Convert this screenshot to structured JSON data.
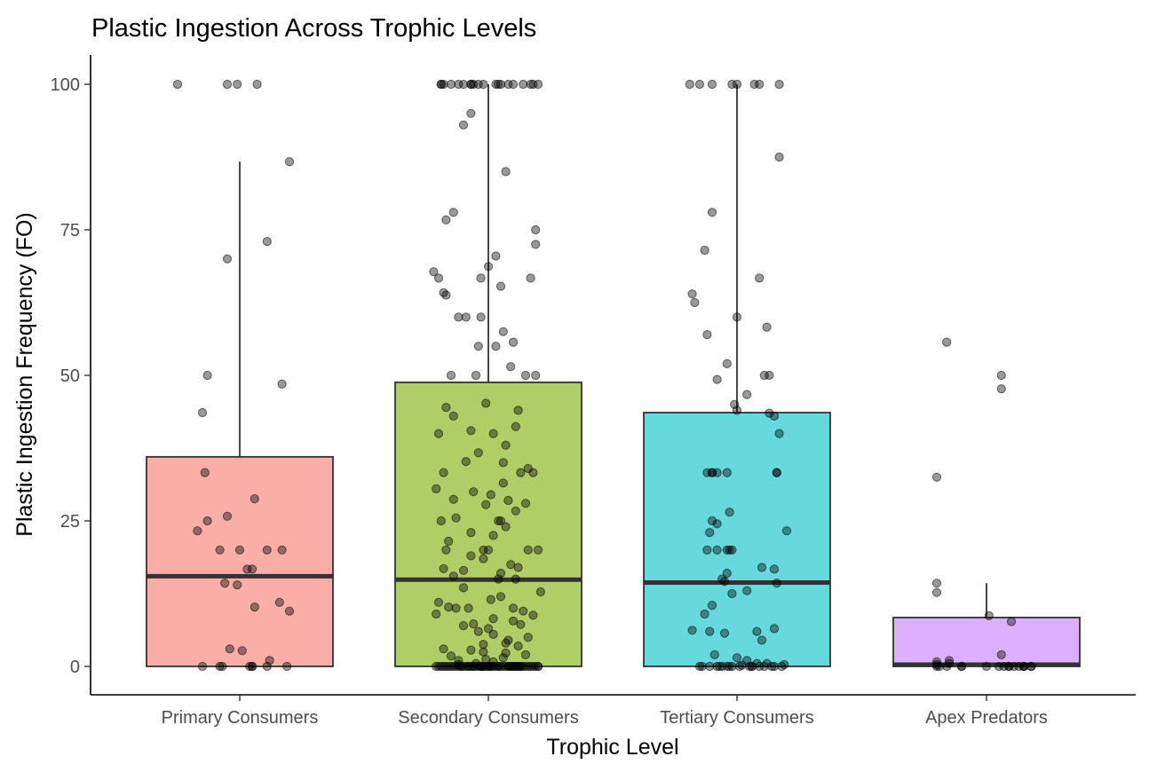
{
  "chart_data": {
    "type": "box",
    "title": "Plastic Ingestion Across Trophic Levels",
    "xlabel": "Trophic Level",
    "ylabel": "Plastic Ingestion Frequency (FO)",
    "ylim": [
      -4.5,
      105
    ],
    "yticks": [
      0,
      25,
      50,
      75,
      100
    ],
    "categories": [
      "Primary Consumers",
      "Secondary Consumers",
      "Tertiary Consumers",
      "Apex Predators"
    ],
    "colors": [
      "#F8766D",
      "#7CAE00",
      "#00BFC4",
      "#C77CFF"
    ],
    "fill_opacity": 0.6,
    "legend": "none",
    "grid": false,
    "boxes": [
      {
        "category": "Primary Consumers",
        "min": 0,
        "q1": 0,
        "median": 15.5,
        "q3": 36,
        "max": 86.7
      },
      {
        "category": "Secondary Consumers",
        "min": 0,
        "q1": 0,
        "median": 14.9,
        "q3": 48.8,
        "max": 100
      },
      {
        "category": "Tertiary Consumers",
        "min": 0,
        "q1": 0,
        "median": 14.4,
        "q3": 43.6,
        "max": 100
      },
      {
        "category": "Apex Predators",
        "min": 0,
        "q1": 0,
        "median": 0.3,
        "q3": 8.4,
        "max": 14.3
      }
    ],
    "points": [
      {
        "category": "Primary Consumers",
        "jitter": [
          -0.05,
          -0.01,
          0.07,
          0.2,
          -0.25,
          -0.05,
          -0.13,
          0.17,
          0.11,
          -0.15,
          -0.14,
          -0.13,
          -0.05,
          0.06,
          -0.17,
          0.11,
          -0.08,
          0.17,
          0.0,
          0.05,
          0.03,
          -0.01,
          -0.06,
          0.16,
          0.2,
          0.06,
          -0.04,
          0.01,
          0.12,
          -0.15,
          0.05,
          -0.07,
          0.19,
          0.11,
          0.04,
          -0.08,
          0.05
        ],
        "values": [
          100,
          100,
          100,
          86.7,
          100,
          70,
          50,
          48.5,
          73,
          43.6,
          33.3,
          25,
          25.8,
          28.8,
          23.3,
          20,
          20,
          20,
          20,
          16.7,
          16.7,
          14,
          14.3,
          11,
          9.5,
          10.2,
          3,
          2.7,
          1,
          0,
          0,
          0,
          0,
          0,
          0,
          0,
          0
        ]
      },
      {
        "category": "Secondary Consumers",
        "jitter": [
          -0.1,
          -0.07,
          -0.02,
          0.05,
          0.1,
          0.17,
          -0.19,
          0.14,
          -0.19,
          0.04,
          0.08,
          0.18,
          -0.15,
          0.2,
          -0.07,
          -0.06,
          -0.18,
          -0.12,
          -0.04,
          0.03,
          -0.07,
          -0.1,
          0.07,
          -0.14,
          -0.17,
          0.19,
          0.19,
          0.03,
          0.0,
          -0.22,
          -0.2,
          0.17,
          -0.03,
          0.05,
          -0.18,
          -0.17,
          -0.09,
          -0.12,
          -0.03,
          0.06,
          0.1,
          0.03,
          -0.04,
          0.09,
          -0.15,
          0.19,
          -0.05,
          0.15,
          -0.01,
          -0.17,
          0.12,
          -0.14,
          0.11,
          -0.07,
          -0.2,
          0.02,
          0.07,
          -0.04,
          -0.09,
          0.06,
          0.16,
          0.13,
          0.18,
          -0.18,
          0.06,
          -0.21,
          -0.06,
          0.01,
          -0.14,
          0.08,
          0.15,
          -0.01,
          0.11,
          -0.13,
          0.05,
          -0.19,
          0.04,
          0.07,
          -0.07,
          0.02,
          -0.16,
          0.16,
          -0.17,
          0.0,
          0.2,
          -0.02,
          -0.07,
          -0.02,
          0.09,
          0.12,
          -0.18,
          -0.1,
          0.05,
          -0.14,
          0.04,
          0.11,
          -0.1,
          0.21,
          0.05,
          0.01,
          -0.2,
          -0.16,
          -0.13,
          -0.08,
          0.1,
          0.14,
          -0.21,
          0.18,
          0.02,
          0.1,
          -0.06,
          0.13,
          -0.1,
          0.0,
          -0.04,
          0.02,
          0.16,
          0.08,
          0.07,
          -0.02,
          0.12,
          -0.18,
          -0.07,
          -0.02,
          0.07,
          0.15,
          -0.15,
          0.06,
          -0.01,
          -0.12,
          0.02,
          -0.05,
          -0.12,
          0.11,
          -0.03,
          0.09,
          -0.01,
          0.02,
          0.05,
          0.08,
          0.12,
          -0.2,
          -0.17,
          -0.14,
          -0.11,
          -0.08,
          -0.05,
          -0.02,
          0.01,
          0.04,
          0.07,
          0.1,
          0.13,
          0.16,
          0.19,
          0.2,
          -0.21,
          -0.19,
          -0.15,
          -0.13,
          -0.09,
          -0.06,
          -0.03,
          0.0,
          0.03,
          0.06,
          0.09,
          0.11,
          0.14,
          0.17,
          0.2,
          -0.16,
          -0.12,
          -0.08,
          -0.04,
          0.0,
          0.04,
          0.08,
          0.12,
          0.15,
          0.18,
          -0.11,
          -0.18,
          0.13,
          -0.03,
          0.1,
          -0.06,
          0.01
        ],
        "values": [
          100,
          100,
          100,
          100,
          100,
          100,
          100,
          100,
          100,
          100,
          100,
          100,
          100,
          100,
          100,
          100,
          100,
          100,
          100,
          100,
          95,
          93,
          85,
          78,
          76.7,
          75,
          72.5,
          70.5,
          68.7,
          67.8,
          66.7,
          66.7,
          66.7,
          65.3,
          64.2,
          63.8,
          60,
          60,
          60,
          57.5,
          55.7,
          55,
          55,
          51.5,
          50,
          50,
          50,
          50,
          45.2,
          44.5,
          44,
          43,
          41.2,
          40.5,
          40,
          40,
          38,
          36.7,
          35.2,
          35,
          34,
          33.3,
          33.3,
          33.3,
          31.5,
          30.5,
          30,
          29.5,
          28.7,
          28.5,
          28,
          27.8,
          26.7,
          25.5,
          25,
          25,
          25,
          24,
          23,
          22.5,
          21.5,
          20,
          20,
          20,
          20,
          20,
          19,
          18.5,
          17.5,
          17,
          16.8,
          16.5,
          16,
          15.5,
          15,
          15,
          13.5,
          12.8,
          12,
          11.5,
          11,
          10.2,
          10,
          10,
          10,
          9.5,
          9,
          8.8,
          8.2,
          7.8,
          7.3,
          7.2,
          7,
          6.5,
          6,
          5.5,
          5,
          4.5,
          4,
          3.8,
          3.5,
          3,
          2.8,
          2.5,
          2.3,
          2,
          1.8,
          1.5,
          1.2,
          1,
          0.8,
          0.5,
          0.3,
          0,
          0,
          0,
          0,
          0,
          0,
          0,
          0,
          0,
          0,
          0,
          0,
          0,
          0,
          0,
          0,
          0,
          0,
          0,
          0,
          0,
          0,
          0,
          0,
          0,
          0,
          0,
          0,
          0,
          0,
          0,
          0,
          0,
          0,
          0,
          0,
          0,
          0,
          0,
          0,
          0,
          0,
          0,
          0,
          0,
          0,
          0,
          0,
          0,
          0,
          0,
          0,
          0,
          0,
          0,
          0,
          0,
          0
        ]
      },
      {
        "category": "Tertiary Consumers",
        "jitter": [
          -0.19,
          -0.15,
          -0.1,
          -0.02,
          0.0,
          0.17,
          0.09,
          0.07,
          0.17,
          -0.1,
          -0.13,
          0.09,
          -0.18,
          -0.17,
          0.0,
          0.12,
          -0.12,
          -0.04,
          0.13,
          0.11,
          -0.08,
          0.04,
          -0.01,
          0.0,
          0.13,
          0.15,
          0.17,
          -0.04,
          -0.12,
          -0.1,
          -0.1,
          -0.08,
          0.16,
          0.16,
          -0.03,
          -0.1,
          -0.08,
          0.2,
          -0.11,
          -0.02,
          -0.08,
          -0.12,
          -0.03,
          -0.04,
          0.1,
          0.15,
          -0.04,
          -0.06,
          -0.05,
          0.16,
          0.04,
          -0.02,
          -0.1,
          -0.13,
          -0.11,
          0.15,
          -0.18,
          0.08,
          -0.05,
          0.1,
          -0.09,
          0.0,
          0.04,
          0.08,
          0.12,
          0.19,
          0.02,
          -0.07,
          -0.14,
          0.06,
          -0.15,
          0.11,
          -0.06,
          -0.03,
          0.01,
          0.06,
          0.09,
          0.14,
          -0.11,
          0.15,
          -0.08,
          -0.04,
          0.05,
          0.18,
          -0.02
        ],
        "values": [
          100,
          100,
          100,
          100,
          100,
          100,
          100,
          100,
          87.5,
          78,
          71.5,
          66.7,
          64,
          62.5,
          60,
          58.3,
          57,
          52,
          50,
          50,
          49.3,
          46.7,
          45,
          44,
          43.5,
          43,
          40,
          33.3,
          33.3,
          33.3,
          33.3,
          33.3,
          33.3,
          33.3,
          26.5,
          25,
          24.5,
          23.3,
          23,
          20,
          20,
          20,
          20,
          20,
          17,
          16.7,
          16,
          15,
          14.6,
          14.3,
          13,
          12.5,
          10.5,
          9,
          6,
          6.5,
          6.2,
          6,
          5.7,
          4.5,
          2,
          1.5,
          1,
          0.5,
          0.5,
          0.3,
          0.2,
          0,
          0,
          0,
          0,
          0,
          0,
          0,
          0,
          0,
          0,
          0,
          0,
          0,
          0,
          0,
          0,
          0,
          0
        ]
      },
      {
        "category": "Apex Predators",
        "jitter": [
          -0.16,
          0.06,
          0.06,
          -0.2,
          -0.2,
          -0.2,
          0.01,
          0.1,
          0.06,
          -0.15,
          -0.2,
          -0.15,
          -0.2,
          -0.1,
          -0.1,
          0.15,
          0.09,
          0.15,
          0.13,
          0.11,
          0.05,
          -0.2,
          -0.19,
          -0.16,
          0.0,
          0.07,
          0.18,
          0.09,
          0.15,
          0.18
        ],
        "values": [
          55.7,
          50,
          47.7,
          32.5,
          14.3,
          12.7,
          8.7,
          7.7,
          2,
          1,
          0.8,
          0.5,
          0.3,
          0,
          0,
          0,
          0,
          0,
          0,
          0,
          0,
          0,
          0,
          0,
          0,
          0,
          0,
          0,
          0,
          0
        ]
      }
    ]
  }
}
